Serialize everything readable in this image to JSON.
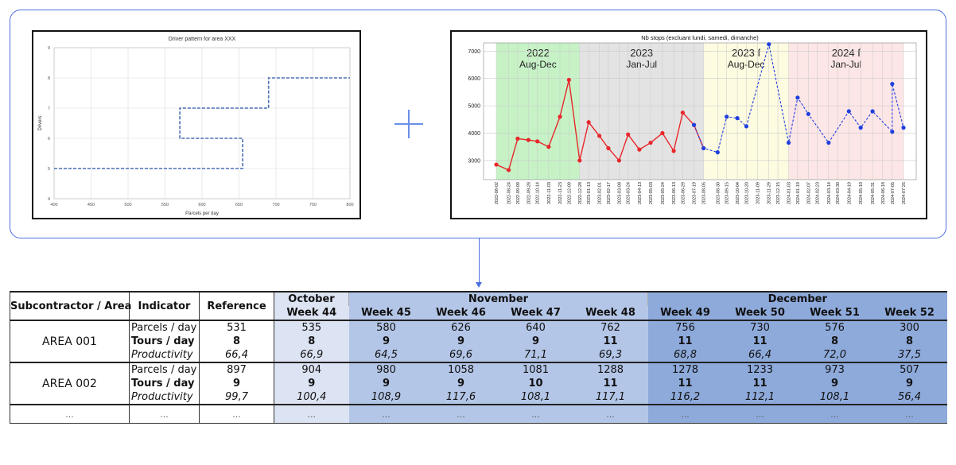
{
  "chart_data": [
    {
      "type": "line",
      "title": "Driver pattern for area XXX",
      "xlabel": "Parcels per day",
      "ylabel": "Drivers",
      "xlim": [
        400,
        800
      ],
      "ylim": [
        4,
        9
      ],
      "x_ticks": [
        "400",
        "450",
        "500",
        "550",
        "600",
        "650",
        "700",
        "750",
        "800"
      ],
      "y_ticks": [
        "4",
        "5",
        "6",
        "7",
        "8",
        "9"
      ],
      "grid": true,
      "line_style": "dashed",
      "color": "#4a6fb5",
      "x": [
        400,
        655,
        655,
        570,
        570,
        690,
        690,
        800
      ],
      "steps": [
        {
          "from": 400,
          "to": 655,
          "drivers": 5
        },
        {
          "from": 655,
          "to": 570,
          "drivers": 6
        },
        {
          "from": 570,
          "to": 690,
          "drivers": 7
        },
        {
          "from": 690,
          "to": 800,
          "drivers": 8
        }
      ]
    },
    {
      "type": "line",
      "title": "Nb stops (excluant lundi, samedi, dimanche)",
      "ylim": [
        2300,
        7300
      ],
      "y_ticks": [
        "3000",
        "4000",
        "5000",
        "6000",
        "7000"
      ],
      "grid": true,
      "x_ticks": [
        "2022-08-02",
        "2022-08-24",
        "2022-09-09",
        "2022-09-28",
        "2022-10-14",
        "2022-11-03",
        "2022-11-23",
        "2022-12-09",
        "2022-12-28",
        "2023-01-13",
        "2023-02-01",
        "2023-02-17",
        "2023-03-08",
        "2023-03-24",
        "2023-04-13",
        "2023-05-03",
        "2023-05-24",
        "2023-06-13",
        "2023-06-29",
        "2023-07-19",
        "2023-08-05",
        "2023-08-30",
        "2023-09-15",
        "2023-10-04",
        "2023-10-20",
        "2023-11-09",
        "2023-11-29",
        "2023-12-15",
        "2024-01-03",
        "2024-01-19",
        "2024-02-07",
        "2024-02-23",
        "2024-03-14",
        "2024-03-30",
        "2024-04-19",
        "2024-05-10",
        "2024-05-31",
        "2024-06-18",
        "2024-07-05",
        "2024-07-25"
      ],
      "periods": [
        {
          "label1": "2022",
          "label2": "Aug-Dec",
          "start": "2022-08-02",
          "end": "2022-12-28",
          "color": "#c6f2c6"
        },
        {
          "label1": "2023",
          "label2": "Jan-Jul",
          "start": "2022-12-28",
          "end": "2023-08-05",
          "color": "#e3e3e3"
        },
        {
          "label1": "2023 f",
          "label2": "Aug-Dec",
          "start": "2023-08-05",
          "end": "2024-01-03",
          "color": "#fdfbe0"
        },
        {
          "label1": "2024 f",
          "label2": "Jan-Jul",
          "start": "2024-01-03",
          "end": "2024-07-25",
          "color": "#fde6e6"
        }
      ],
      "series": [
        {
          "style": "red-line",
          "color": "#e8272b",
          "points": [
            [
              "2022-08-02",
              2850
            ],
            [
              "2022-08-24",
              2650
            ],
            [
              "2022-09-09",
              3800
            ],
            [
              "2022-09-28",
              3750
            ],
            [
              "2022-10-14",
              3700
            ],
            [
              "2022-11-03",
              3500
            ],
            [
              "2022-11-23",
              4600
            ],
            [
              "2022-12-09",
              5950
            ],
            [
              "2022-12-28",
              3000
            ],
            [
              "2023-01-13",
              4400
            ],
            [
              "2023-02-01",
              3900
            ],
            [
              "2023-02-17",
              3450
            ],
            [
              "2023-03-08",
              3000
            ],
            [
              "2023-03-24",
              3950
            ],
            [
              "2023-04-13",
              3400
            ],
            [
              "2023-05-03",
              3650
            ],
            [
              "2023-05-24",
              4000
            ],
            [
              "2023-06-13",
              3350
            ],
            [
              "2023-06-29",
              4750
            ],
            [
              "2023-07-19",
              4300
            ],
            [
              "2023-08-05",
              3450
            ]
          ]
        },
        {
          "style": "blue-dashed",
          "color": "#1f3fe0",
          "points": [
            [
              "2023-07-19",
              4300
            ],
            [
              "2023-08-05",
              3450
            ],
            [
              "2023-08-30",
              3300
            ],
            [
              "2023-09-15",
              4600
            ],
            [
              "2023-10-04",
              4550
            ],
            [
              "2023-10-20",
              4250
            ],
            [
              "2023-11-29",
              7250
            ],
            [
              "2024-01-03",
              3650
            ],
            [
              "2024-01-19",
              5300
            ],
            [
              "2024-02-07",
              4700
            ],
            [
              "2024-03-14",
              3650
            ],
            [
              "2024-04-19",
              4800
            ],
            [
              "2024-05-10",
              4200
            ],
            [
              "2024-05-31",
              4800
            ],
            [
              "2024-07-05",
              4050
            ],
            [
              "2024-07-05",
              5800
            ],
            [
              "2024-07-25",
              4200
            ]
          ]
        }
      ]
    }
  ],
  "table": {
    "header": {
      "subcontractor": "Subcontractor / Area",
      "indicator": "Indicator",
      "reference": "Reference",
      "months": [
        {
          "name": "October",
          "span": 1,
          "cls": "bg-oct"
        },
        {
          "name": "November",
          "span": 4,
          "cls": "bg-nov"
        },
        {
          "name": "December",
          "span": 4,
          "cls": "bg-dec"
        }
      ],
      "weeks": [
        "Week 44",
        "Week 45",
        "Week 46",
        "Week 47",
        "Week 48",
        "Week 49",
        "Week 50",
        "Week 51",
        "Week 52"
      ]
    },
    "areas": [
      {
        "name": "AREA 001",
        "rows": [
          {
            "indicator": "Parcels / day",
            "style": "normal",
            "reference": "531",
            "values": [
              "535",
              "580",
              "626",
              "640",
              "762",
              "756",
              "730",
              "576",
              "300"
            ]
          },
          {
            "indicator": "Tours / day",
            "style": "bold",
            "reference": "8",
            "values": [
              "8",
              "9",
              "9",
              "9",
              "11",
              "11",
              "11",
              "8",
              "8"
            ]
          },
          {
            "indicator": "Productivity",
            "style": "italic",
            "reference": "66,4",
            "values": [
              "66,9",
              "64,5",
              "69,6",
              "71,1",
              "69,3",
              "68,8",
              "66,4",
              "72,0",
              "37,5"
            ]
          }
        ]
      },
      {
        "name": "AREA 002",
        "rows": [
          {
            "indicator": "Parcels / day",
            "style": "normal",
            "reference": "897",
            "values": [
              "904",
              "980",
              "1058",
              "1081",
              "1288",
              "1278",
              "1233",
              "973",
              "507"
            ]
          },
          {
            "indicator": "Tours / day",
            "style": "bold",
            "reference": "9",
            "values": [
              "9",
              "9",
              "9",
              "10",
              "11",
              "11",
              "11",
              "9",
              "9"
            ]
          },
          {
            "indicator": "Productivity",
            "style": "italic",
            "reference": "99,7",
            "values": [
              "100,4",
              "108,9",
              "117,6",
              "108,1",
              "117,1",
              "116,2",
              "112,1",
              "108,1",
              "56,4"
            ]
          }
        ]
      }
    ],
    "ellipsis": "..."
  }
}
